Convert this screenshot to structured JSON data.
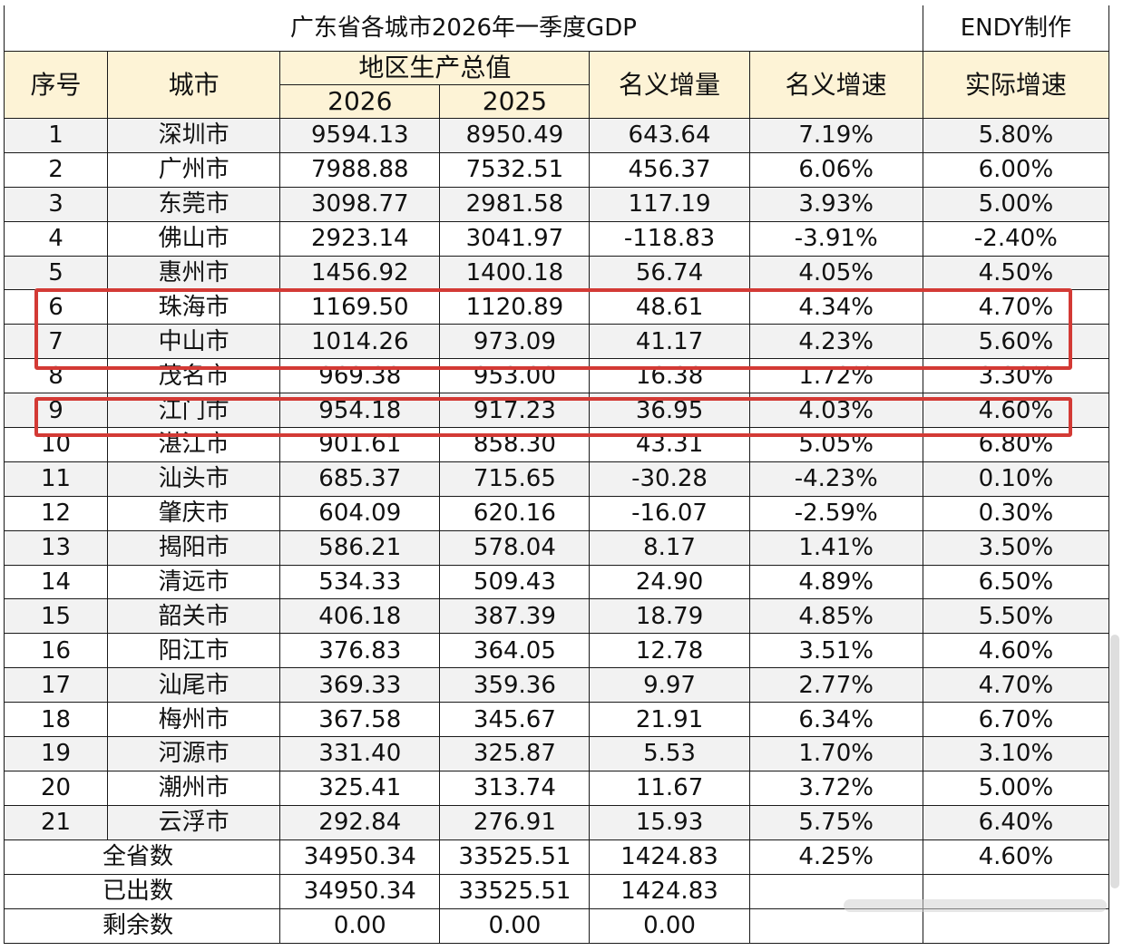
{
  "title": "广东省各城市2026年一季度GDP",
  "maker": "ENDY制作",
  "headers": {
    "index": "序号",
    "city": "城市",
    "gdp_group": "地区生产总值",
    "year_a": "2026",
    "year_b": "2025",
    "nominal_increment": "名义增量",
    "nominal_growth": "名义增速",
    "real_growth": "实际增速"
  },
  "rows": [
    {
      "no": "1",
      "city": "深圳市",
      "gdp2026": "9594.13",
      "gdp2025": "8950.49",
      "increment": "643.64",
      "nominal": "7.19%",
      "real": "5.80%"
    },
    {
      "no": "2",
      "city": "广州市",
      "gdp2026": "7988.88",
      "gdp2025": "7532.51",
      "increment": "456.37",
      "nominal": "6.06%",
      "real": "6.00%"
    },
    {
      "no": "3",
      "city": "东莞市",
      "gdp2026": "3098.77",
      "gdp2025": "2981.58",
      "increment": "117.19",
      "nominal": "3.93%",
      "real": "5.00%"
    },
    {
      "no": "4",
      "city": "佛山市",
      "gdp2026": "2923.14",
      "gdp2025": "3041.97",
      "increment": "-118.83",
      "nominal": "-3.91%",
      "real": "-2.40%"
    },
    {
      "no": "5",
      "city": "惠州市",
      "gdp2026": "1456.92",
      "gdp2025": "1400.18",
      "increment": "56.74",
      "nominal": "4.05%",
      "real": "4.50%"
    },
    {
      "no": "6",
      "city": "珠海市",
      "gdp2026": "1169.50",
      "gdp2025": "1120.89",
      "increment": "48.61",
      "nominal": "4.34%",
      "real": "4.70%"
    },
    {
      "no": "7",
      "city": "中山市",
      "gdp2026": "1014.26",
      "gdp2025": "973.09",
      "increment": "41.17",
      "nominal": "4.23%",
      "real": "5.60%"
    },
    {
      "no": "8",
      "city": "茂名市",
      "gdp2026": "969.38",
      "gdp2025": "953.00",
      "increment": "16.38",
      "nominal": "1.72%",
      "real": "3.30%"
    },
    {
      "no": "9",
      "city": "江门市",
      "gdp2026": "954.18",
      "gdp2025": "917.23",
      "increment": "36.95",
      "nominal": "4.03%",
      "real": "4.60%"
    },
    {
      "no": "10",
      "city": "湛江市",
      "gdp2026": "901.61",
      "gdp2025": "858.30",
      "increment": "43.31",
      "nominal": "5.05%",
      "real": "6.80%"
    },
    {
      "no": "11",
      "city": "汕头市",
      "gdp2026": "685.37",
      "gdp2025": "715.65",
      "increment": "-30.28",
      "nominal": "-4.23%",
      "real": "0.10%"
    },
    {
      "no": "12",
      "city": "肇庆市",
      "gdp2026": "604.09",
      "gdp2025": "620.16",
      "increment": "-16.07",
      "nominal": "-2.59%",
      "real": "0.30%"
    },
    {
      "no": "13",
      "city": "揭阳市",
      "gdp2026": "586.21",
      "gdp2025": "578.04",
      "increment": "8.17",
      "nominal": "1.41%",
      "real": "3.50%"
    },
    {
      "no": "14",
      "city": "清远市",
      "gdp2026": "534.33",
      "gdp2025": "509.43",
      "increment": "24.90",
      "nominal": "4.89%",
      "real": "6.50%"
    },
    {
      "no": "15",
      "city": "韶关市",
      "gdp2026": "406.18",
      "gdp2025": "387.39",
      "increment": "18.79",
      "nominal": "4.85%",
      "real": "5.50%"
    },
    {
      "no": "16",
      "city": "阳江市",
      "gdp2026": "376.83",
      "gdp2025": "364.05",
      "increment": "12.78",
      "nominal": "3.51%",
      "real": "4.60%"
    },
    {
      "no": "17",
      "city": "汕尾市",
      "gdp2026": "369.33",
      "gdp2025": "359.36",
      "increment": "9.97",
      "nominal": "2.77%",
      "real": "4.70%"
    },
    {
      "no": "18",
      "city": "梅州市",
      "gdp2026": "367.58",
      "gdp2025": "345.67",
      "increment": "21.91",
      "nominal": "6.34%",
      "real": "6.70%"
    },
    {
      "no": "19",
      "city": "河源市",
      "gdp2026": "331.40",
      "gdp2025": "325.87",
      "increment": "5.53",
      "nominal": "1.70%",
      "real": "3.10%"
    },
    {
      "no": "20",
      "city": "潮州市",
      "gdp2026": "325.41",
      "gdp2025": "313.74",
      "increment": "11.67",
      "nominal": "3.72%",
      "real": "5.00%"
    },
    {
      "no": "21",
      "city": "云浮市",
      "gdp2026": "292.84",
      "gdp2025": "276.91",
      "increment": "15.93",
      "nominal": "5.75%",
      "real": "6.40%"
    }
  ],
  "summary": [
    {
      "label": "全省数",
      "gdp2026": "34950.34",
      "gdp2025": "33525.51",
      "increment": "1424.83",
      "nominal": "4.25%",
      "real": "4.60%"
    },
    {
      "label": "已出数",
      "gdp2026": "34950.34",
      "gdp2025": "33525.51",
      "increment": "1424.83",
      "nominal": "",
      "real": ""
    },
    {
      "label": "剩余数",
      "gdp2026": "0.00",
      "gdp2025": "0.00",
      "increment": "0.00",
      "nominal": "",
      "real": ""
    }
  ],
  "highlighted_rows": [
    "6",
    "7",
    "9"
  ],
  "colors": {
    "header_bg": "#fdf3d6",
    "stripe_bg": "#f2f2f2",
    "highlight": "#d33a35"
  }
}
